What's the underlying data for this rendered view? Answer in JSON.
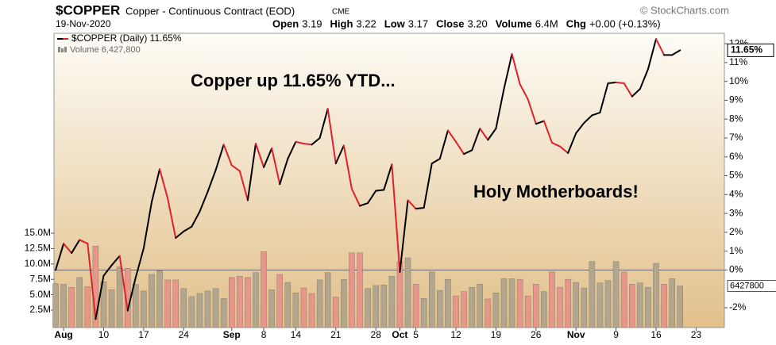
{
  "header": {
    "symbol": "$COPPER",
    "name": "Copper - Continuous Contract (EOD)",
    "exchange": "CME",
    "credit": "© StockCharts.com",
    "date": "19-Nov-2020",
    "quote": [
      {
        "label": "Open",
        "value": "3.19"
      },
      {
        "label": "High",
        "value": "3.22"
      },
      {
        "label": "Low",
        "value": "3.17"
      },
      {
        "label": "Close",
        "value": "3.20"
      },
      {
        "label": "Volume",
        "value": "6.4M"
      },
      {
        "label": "Chg",
        "value": "+0.00 (+0.13%)"
      }
    ]
  },
  "chart_data": {
    "type": "line",
    "categories": [
      null,
      "Aug",
      null,
      null,
      null,
      null,
      "10",
      null,
      null,
      null,
      null,
      "17",
      null,
      null,
      null,
      null,
      "24",
      null,
      null,
      null,
      null,
      null,
      "Sep",
      null,
      null,
      null,
      "8",
      null,
      null,
      null,
      "14",
      null,
      null,
      null,
      null,
      "21",
      null,
      null,
      null,
      null,
      "28",
      null,
      null,
      "Oct",
      null,
      "5",
      null,
      null,
      null,
      null,
      "12",
      null,
      null,
      null,
      null,
      "19",
      null,
      null,
      null,
      null,
      "26",
      null,
      null,
      null,
      null,
      "Nov",
      null,
      null,
      null,
      null,
      "9",
      null,
      null,
      null,
      null,
      "16",
      null,
      null,
      null,
      null,
      "23"
    ],
    "month_labels": [
      "Aug",
      "Sep",
      "Oct",
      "Nov"
    ],
    "series": [
      {
        "name": "$COPPER (Daily) 11.65%",
        "up_color": "#000000",
        "down_color": "#e0202c",
        "last_value_label": "11.65%",
        "values": [
          0.0,
          1.4,
          0.9,
          1.6,
          1.4,
          -2.6,
          -0.3,
          0.25,
          0.75,
          -2.15,
          -0.4,
          1.15,
          3.6,
          5.35,
          3.8,
          1.7,
          2.05,
          2.3,
          3.1,
          4.15,
          5.3,
          6.65,
          5.55,
          5.25,
          3.7,
          6.7,
          5.45,
          6.45,
          4.55,
          5.9,
          6.8,
          6.7,
          6.65,
          7.0,
          8.55,
          5.65,
          6.6,
          4.3,
          3.4,
          3.55,
          4.2,
          4.25,
          5.6,
          -0.1,
          3.7,
          3.25,
          3.3,
          5.65,
          5.9,
          7.4,
          6.8,
          6.15,
          6.35,
          7.5,
          6.9,
          7.5,
          9.6,
          11.45,
          9.85,
          9.05,
          7.75,
          7.9,
          6.75,
          6.55,
          6.2,
          7.25,
          7.8,
          8.2,
          8.35,
          9.9,
          9.95,
          9.9,
          9.2,
          9.6,
          10.65,
          12.25,
          11.4,
          11.4,
          11.65,
          null,
          null
        ]
      },
      {
        "name": "Volume 6,427,800",
        "axis": "y2",
        "up_color": "#b3a68f",
        "down_color": "#e8958b",
        "last_value_label": "6427800",
        "values": [
          6800000,
          6700000,
          6200000,
          7800000,
          6300000,
          12900000,
          7100000,
          5800000,
          9500000,
          9300000,
          6700000,
          5600000,
          8300000,
          8900000,
          7400000,
          7400000,
          6000000,
          4700000,
          5200000,
          5600000,
          6000000,
          4400000,
          7800000,
          8000000,
          7800000,
          8600000,
          12000000,
          5800000,
          8300000,
          7000000,
          5300000,
          6100000,
          5200000,
          7400000,
          8600000,
          4600000,
          7500000,
          11800000,
          11800000,
          6000000,
          6500000,
          6600000,
          8000000,
          10400000,
          11000000,
          6700000,
          4400000,
          8700000,
          5700000,
          7500000,
          4800000,
          5500000,
          6200000,
          6700000,
          4300000,
          5300000,
          7600000,
          7600000,
          7500000,
          4800000,
          6700000,
          5500000,
          8700000,
          6200000,
          7500000,
          7000000,
          6100000,
          10400000,
          6900000,
          7300000,
          10400000,
          8700000,
          6700000,
          6900000,
          6200000,
          10100000,
          6700000,
          7600000,
          6427800,
          null,
          null
        ]
      }
    ],
    "ylim": [
      -3.05,
      12.55
    ],
    "yticks": [
      {
        "value": -2,
        "label": "-2%"
      },
      {
        "value": 0,
        "label": "0%"
      },
      {
        "value": 1,
        "label": "1%"
      },
      {
        "value": 2,
        "label": "2%"
      },
      {
        "value": 3,
        "label": "3%"
      },
      {
        "value": 4,
        "label": "4%"
      },
      {
        "value": 5,
        "label": "5%"
      },
      {
        "value": 6,
        "label": "6%"
      },
      {
        "value": 7,
        "label": "7%"
      },
      {
        "value": 8,
        "label": "8%"
      },
      {
        "value": 9,
        "label": "9%"
      },
      {
        "value": 10,
        "label": "10%"
      },
      {
        "value": 11,
        "label": "11%"
      },
      {
        "value": 12,
        "label": "12%"
      }
    ],
    "y2lim": [
      -340000,
      47500000
    ],
    "y2ticks": [
      {
        "value": 2500000,
        "label": "2.5M"
      },
      {
        "value": 5000000,
        "label": "5.0M"
      },
      {
        "value": 7500000,
        "label": "7.5M"
      },
      {
        "value": 10000000,
        "label": "10.0M"
      },
      {
        "value": 12500000,
        "label": "12.5M"
      },
      {
        "value": 15000000,
        "label": "15.0M"
      }
    ],
    "zero_line": true,
    "annotations": [
      "Copper up 11.65% YTD...",
      "Holy Motherboards!"
    ]
  }
}
